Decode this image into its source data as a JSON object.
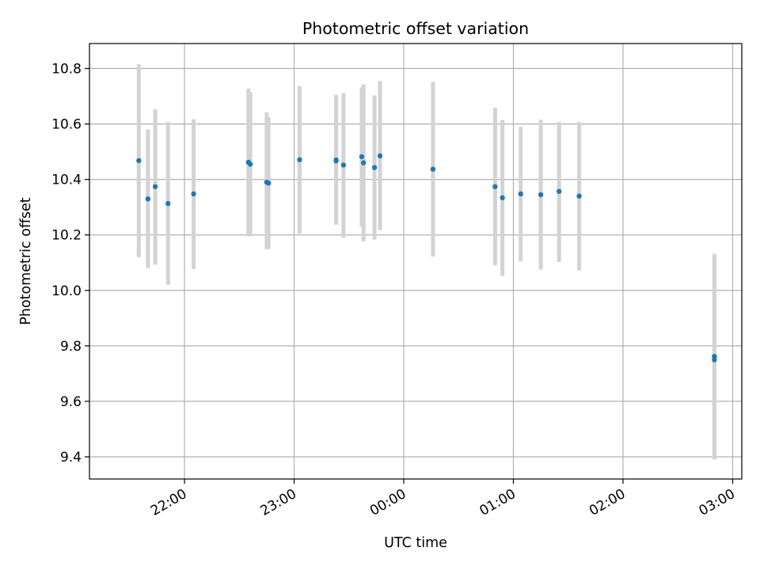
{
  "chart_data": {
    "type": "scatter",
    "title": "Photometric offset variation",
    "xlabel": "UTC time",
    "ylabel": "Photometric offset",
    "xlim": [
      "21:08",
      "03:05"
    ],
    "ylim": [
      9.32,
      10.89
    ],
    "x_ticks": [
      "22:00",
      "23:00",
      "00:00",
      "01:00",
      "02:00",
      "03:00"
    ],
    "y_ticks": [
      9.4,
      9.6,
      9.8,
      10.0,
      10.2,
      10.4,
      10.6,
      10.8
    ],
    "grid": true,
    "colors": {
      "points": "#1f77b4",
      "error_bars": "#d3d3d3",
      "grid": "#b0b0b0"
    },
    "points": [
      {
        "x": "21:35",
        "y": 10.468,
        "lo": 10.12,
        "hi": 10.815
      },
      {
        "x": "21:40",
        "y": 10.33,
        "lo": 10.08,
        "hi": 10.58
      },
      {
        "x": "21:44",
        "y": 10.374,
        "lo": 10.093,
        "hi": 10.653
      },
      {
        "x": "21:51",
        "y": 10.313,
        "lo": 10.02,
        "hi": 10.607
      },
      {
        "x": "22:05",
        "y": 10.348,
        "lo": 10.077,
        "hi": 10.617
      },
      {
        "x": "22:35",
        "y": 10.462,
        "lo": 10.195,
        "hi": 10.728
      },
      {
        "x": "22:36",
        "y": 10.455,
        "lo": 10.195,
        "hi": 10.715
      },
      {
        "x": "22:45",
        "y": 10.39,
        "lo": 10.148,
        "hi": 10.642
      },
      {
        "x": "22:46",
        "y": 10.387,
        "lo": 10.15,
        "hi": 10.625
      },
      {
        "x": "23:03",
        "y": 10.471,
        "lo": 10.205,
        "hi": 10.737
      },
      {
        "x": "23:23",
        "y": 10.47,
        "lo": 10.237,
        "hi": 10.705
      },
      {
        "x": "23:23",
        "y": 10.467,
        "lo": 10.24,
        "hi": 10.7
      },
      {
        "x": "23:27",
        "y": 10.452,
        "lo": 10.19,
        "hi": 10.712
      },
      {
        "x": "23:37",
        "y": 10.482,
        "lo": 10.23,
        "hi": 10.732
      },
      {
        "x": "23:38",
        "y": 10.46,
        "lo": 10.177,
        "hi": 10.743
      },
      {
        "x": "23:44",
        "y": 10.443,
        "lo": 10.183,
        "hi": 10.703
      },
      {
        "x": "23:47",
        "y": 10.485,
        "lo": 10.217,
        "hi": 10.755
      },
      {
        "x": "00:16",
        "y": 10.437,
        "lo": 10.122,
        "hi": 10.752
      },
      {
        "x": "00:50",
        "y": 10.374,
        "lo": 10.09,
        "hi": 10.658
      },
      {
        "x": "00:54",
        "y": 10.334,
        "lo": 10.052,
        "hi": 10.615
      },
      {
        "x": "01:04",
        "y": 10.348,
        "lo": 10.105,
        "hi": 10.59
      },
      {
        "x": "01:15",
        "y": 10.345,
        "lo": 10.075,
        "hi": 10.615
      },
      {
        "x": "01:25",
        "y": 10.357,
        "lo": 10.103,
        "hi": 10.607
      },
      {
        "x": "01:36",
        "y": 10.34,
        "lo": 10.072,
        "hi": 10.607
      },
      {
        "x": "02:50",
        "y": 9.762,
        "lo": 9.392,
        "hi": 10.132
      },
      {
        "x": "02:50",
        "y": 9.75,
        "lo": 9.39,
        "hi": 10.11
      }
    ]
  }
}
